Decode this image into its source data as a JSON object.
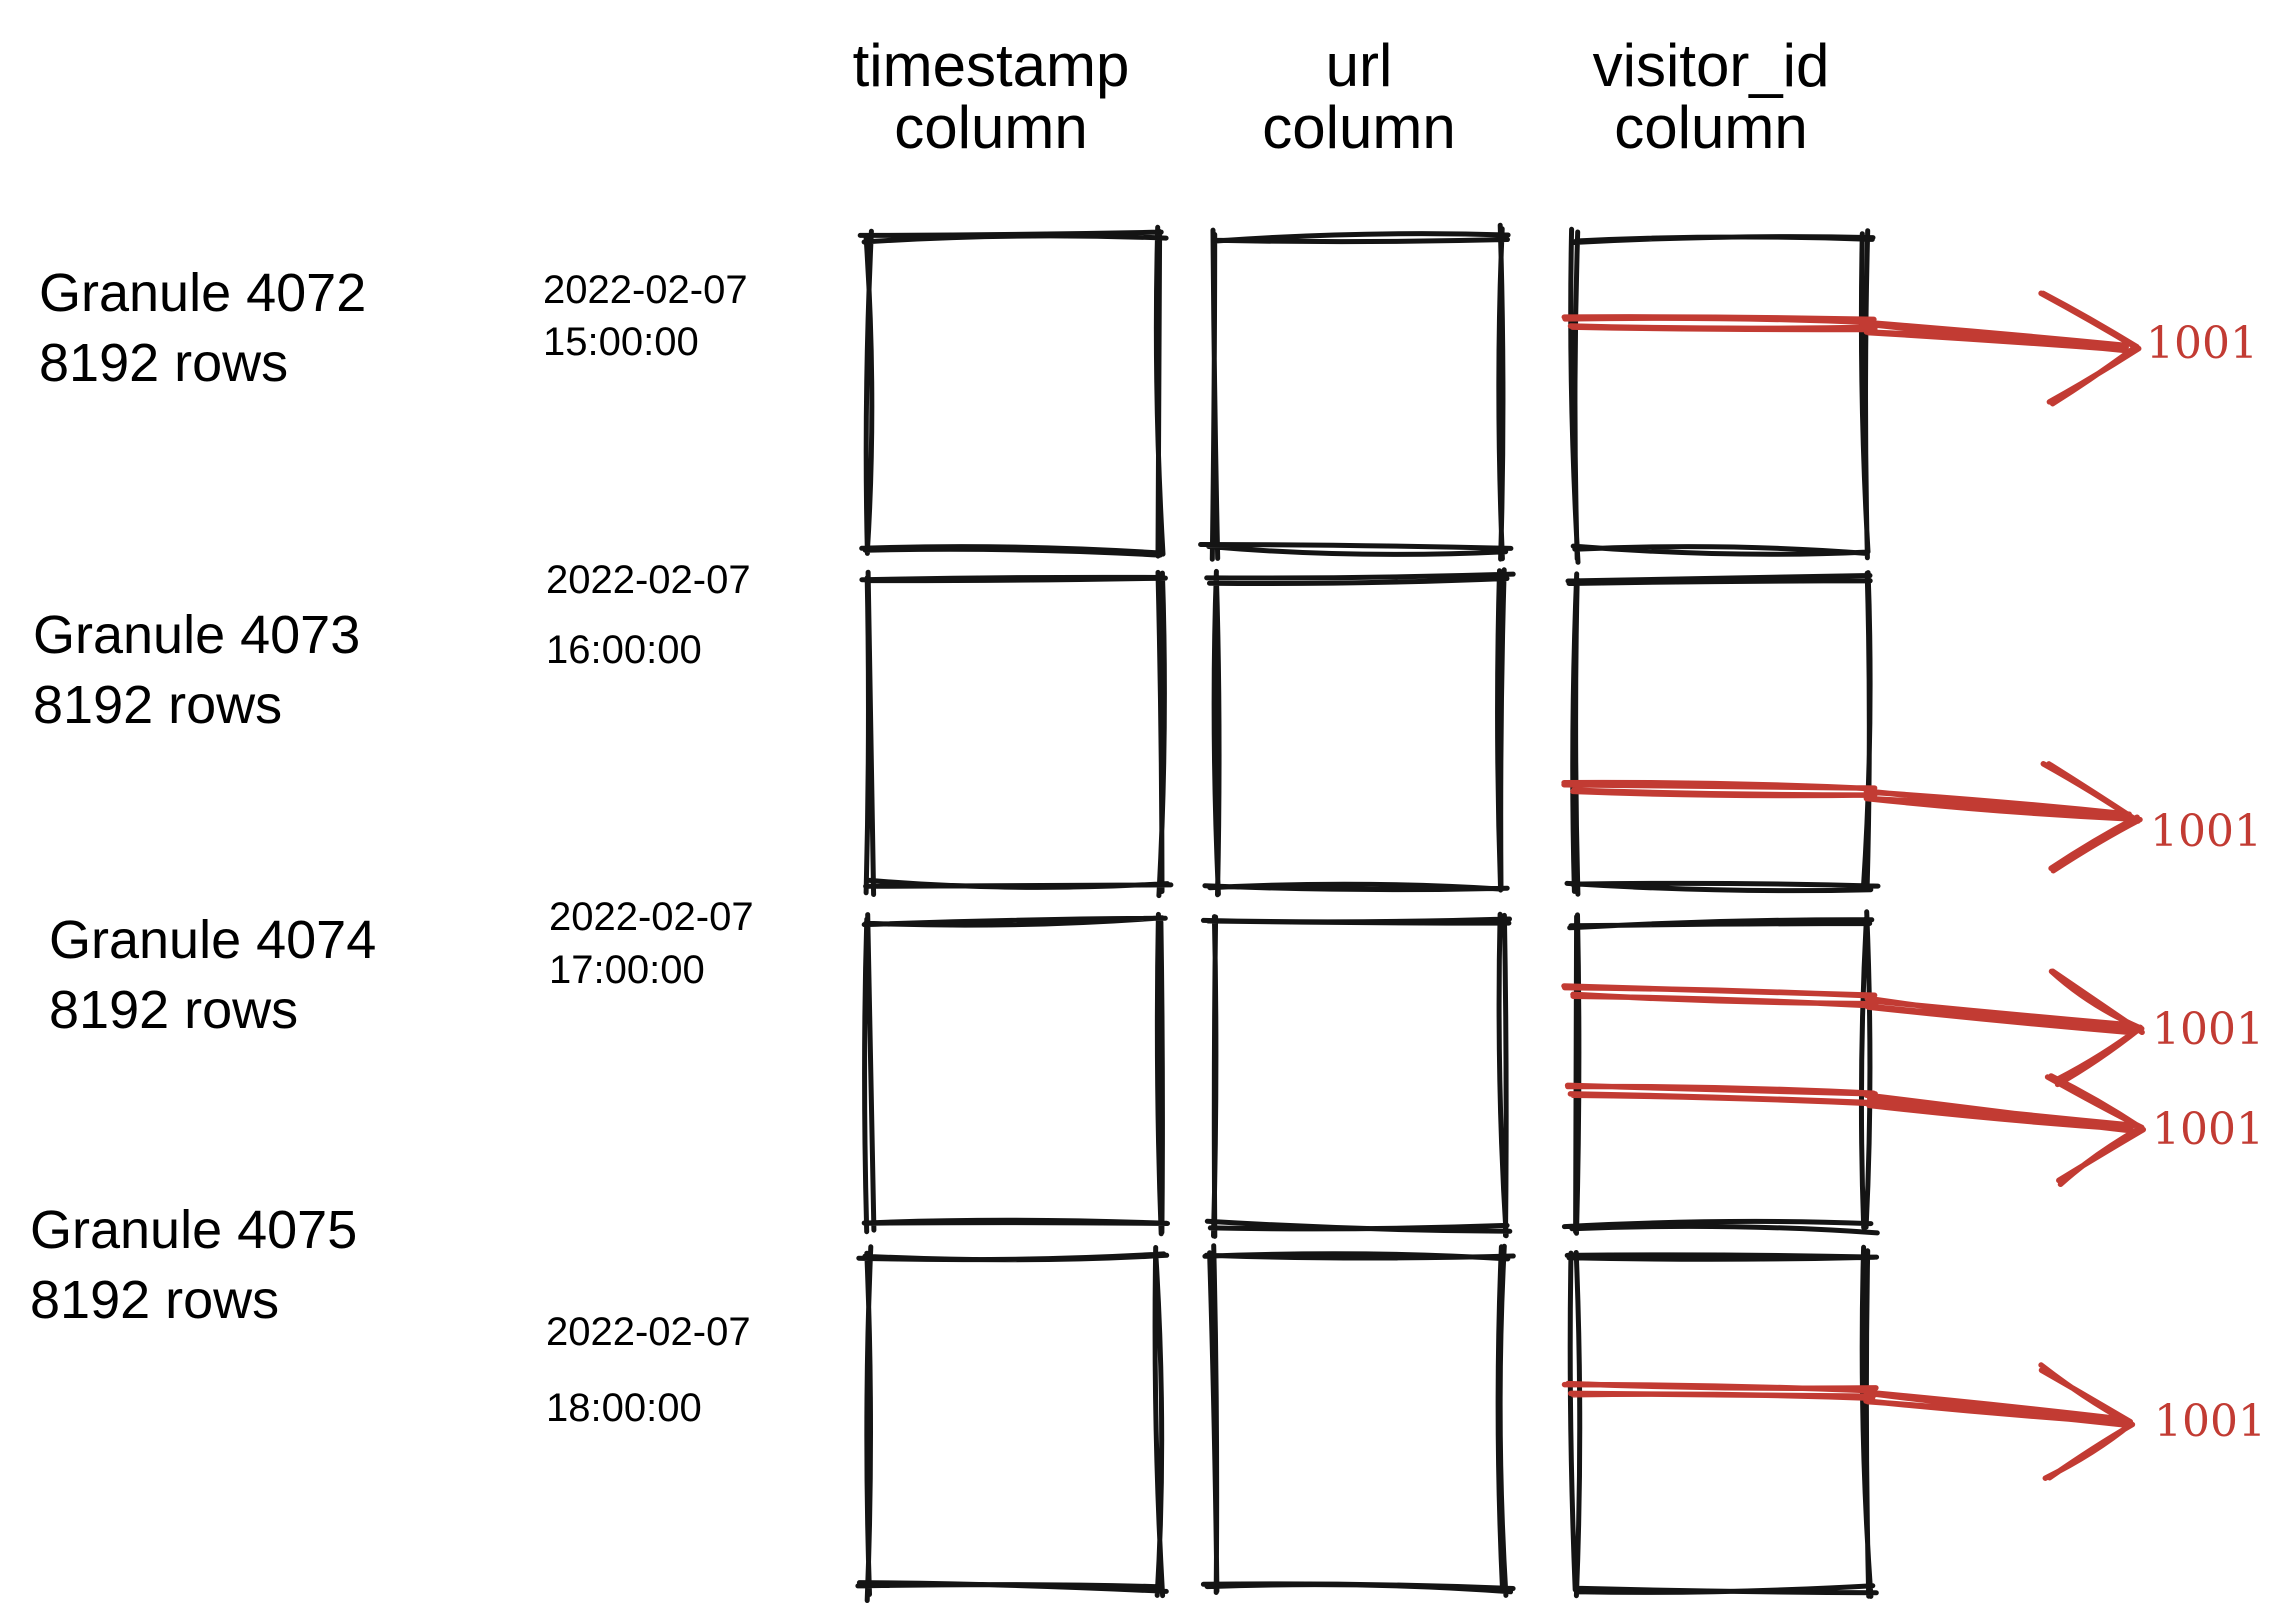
{
  "diagram": {
    "colors": {
      "annotation_red": "#c23b33",
      "ink": "#141414"
    },
    "column_headers": [
      {
        "line1": "timestamp",
        "line2": "column"
      },
      {
        "line1": "url",
        "line2": "column"
      },
      {
        "line1": "visitor_id",
        "line2": "column"
      }
    ],
    "granules": [
      {
        "name": "Granule 4072",
        "rows": "8192 rows",
        "date": "2022-02-07",
        "time": "15:00:00",
        "matches": [
          {
            "value": "1001"
          }
        ]
      },
      {
        "name": "Granule 4073",
        "rows": "8192 rows",
        "date": "2022-02-07",
        "time": "16:00:00",
        "matches": [
          {
            "value": "1001"
          }
        ]
      },
      {
        "name": "Granule 4074",
        "rows": "8192 rows",
        "date": "2022-02-07",
        "time": "17:00:00",
        "matches": [
          {
            "value": "1001"
          },
          {
            "value": "1001"
          }
        ]
      },
      {
        "name": "Granule 4075",
        "rows": "8192 rows",
        "date": "2022-02-07",
        "time": "18:00:00",
        "matches": [
          {
            "value": "1001"
          }
        ]
      }
    ]
  }
}
